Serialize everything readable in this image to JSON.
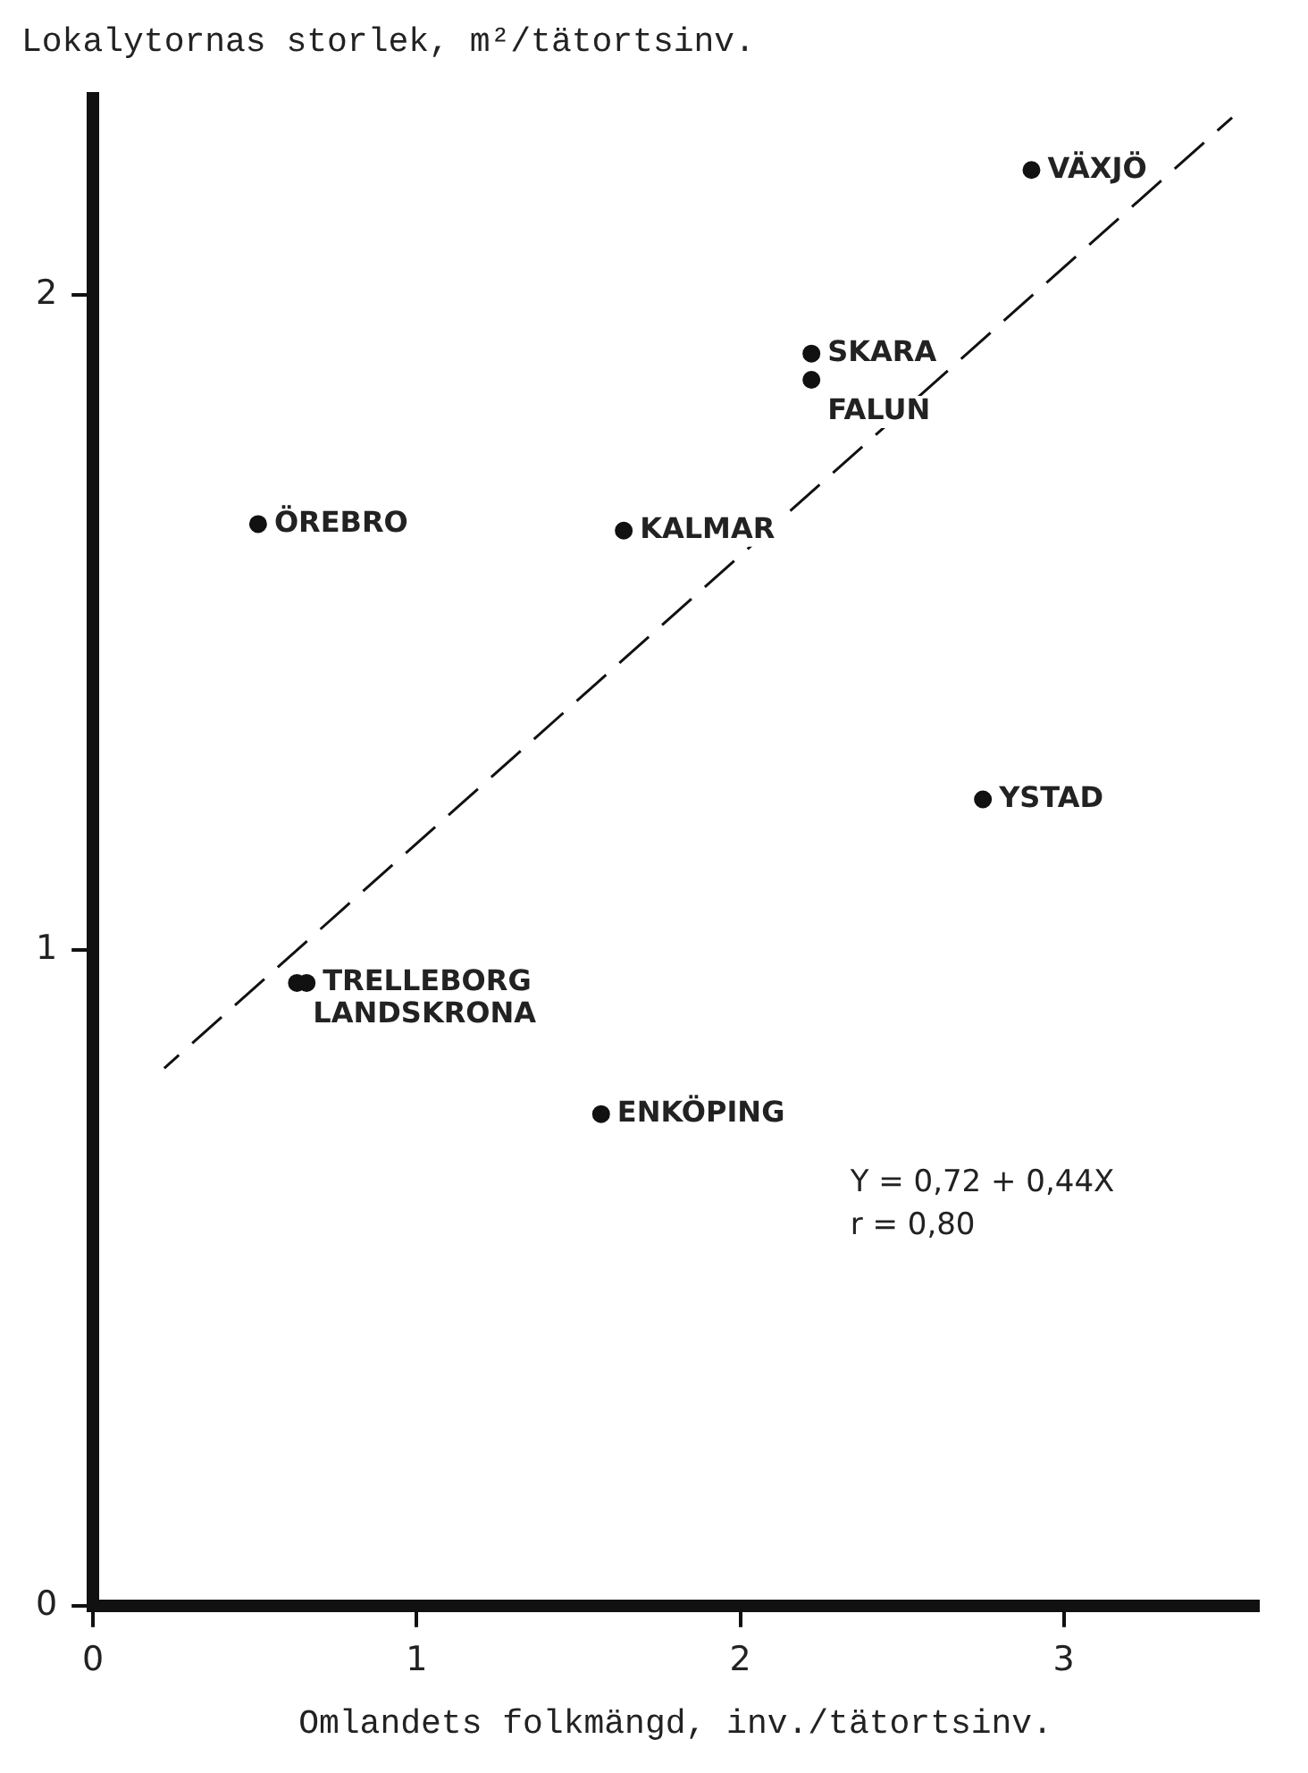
{
  "chart_data": {
    "type": "scatter",
    "ylabel": "Lokalytornas storlek, m²/tätortsinv.",
    "xlabel": "Omlandets folkmängd, inv./tätortsinv.",
    "xlim": [
      0,
      3.6
    ],
    "ylim": [
      0,
      2.3
    ],
    "xticks": [
      0,
      1,
      2,
      3
    ],
    "yticks": [
      0,
      1,
      2
    ],
    "legend": false,
    "marker": "circle",
    "series": [
      {
        "color": "#111111",
        "x": [
          2.9,
          2.22,
          2.22,
          0.51,
          1.64,
          2.75,
          0.66,
          0.63,
          1.57
        ],
        "values": [
          2.19,
          1.91,
          1.87,
          1.65,
          1.64,
          1.23,
          0.95,
          0.95,
          0.75
        ]
      },
      {
        "type": "line",
        "color": "#111111",
        "line_style": "dashed",
        "marker": "none",
        "x": [
          0.22,
          3.52
        ],
        "values": [
          0.82,
          2.27
        ]
      }
    ],
    "annotations": [
      {
        "text": "VÄXJÖ",
        "x": 2.9,
        "y": 2.19
      },
      {
        "text": "SKARA",
        "x": 2.22,
        "y": 1.91
      },
      {
        "text": "FALUN",
        "x": 2.22,
        "y": 1.87
      },
      {
        "text": "ÖREBRO",
        "x": 0.51,
        "y": 1.65
      },
      {
        "text": "KALMAR",
        "x": 1.64,
        "y": 1.64
      },
      {
        "text": "YSTAD",
        "x": 2.75,
        "y": 1.23
      },
      {
        "text": "TRELLEBORG",
        "x": 0.66,
        "y": 0.95
      },
      {
        "text": "LANDSKRONA",
        "x": 0.63,
        "y": 0.95
      },
      {
        "text": "ENKÖPING",
        "x": 1.57,
        "y": 0.75
      },
      "Y = 0,72 + 0,44X",
      "r = 0,80"
    ]
  }
}
